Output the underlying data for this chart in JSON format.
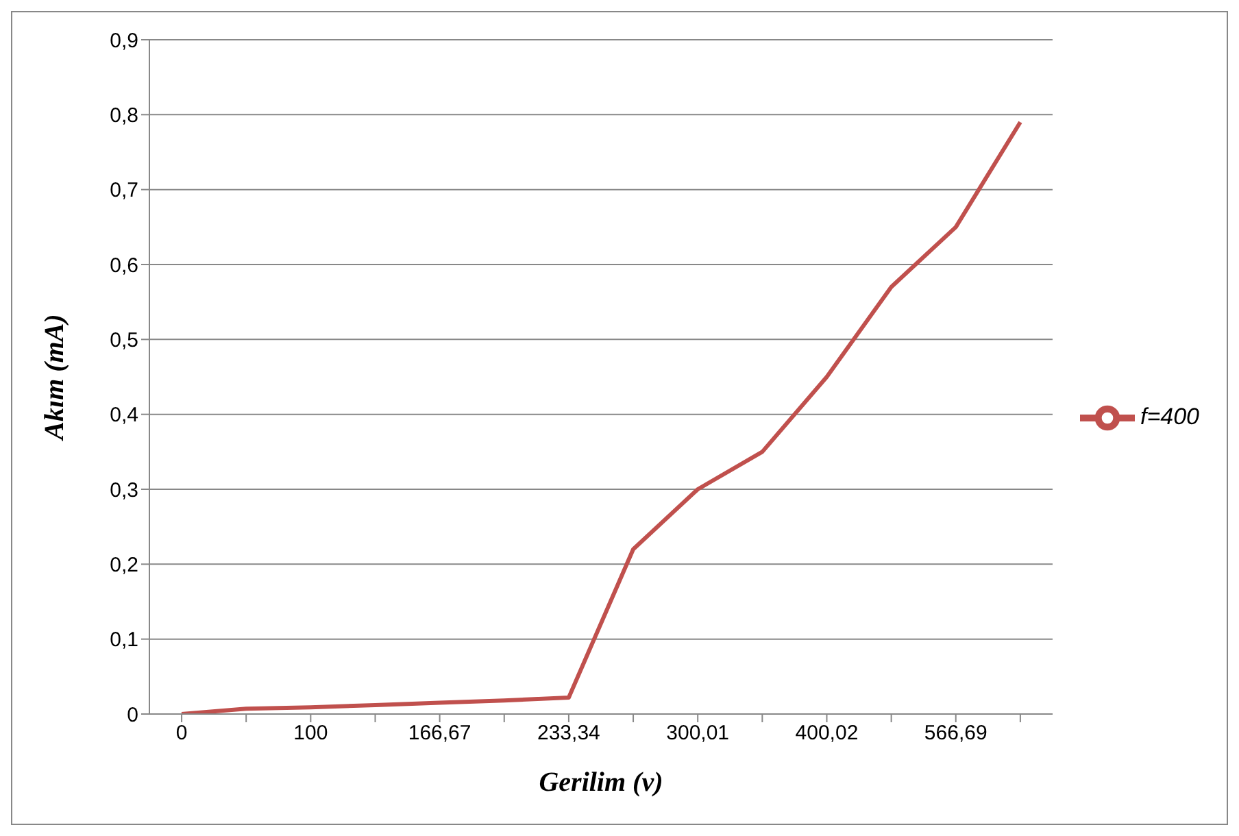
{
  "chart_data": {
    "type": "line",
    "xlabel": "Gerilim (v)",
    "ylabel": "Akım (mA)",
    "categories": [
      "0",
      null,
      "100",
      null,
      "166,67",
      null,
      "233,34",
      null,
      "300,01",
      null,
      "400,02",
      null,
      "566,69",
      null
    ],
    "series": [
      {
        "name": "f=400",
        "color": "#c0504d",
        "values": [
          0,
          0.007,
          0.009,
          0.012,
          0.015,
          0.018,
          0.022,
          0.22,
          0.3,
          0.35,
          0.45,
          0.57,
          0.65,
          0.79
        ]
      }
    ],
    "ylim": [
      0,
      0.9
    ],
    "yticks": [
      {
        "value": 0,
        "label": "0"
      },
      {
        "value": 0.1,
        "label": "0,1"
      },
      {
        "value": 0.2,
        "label": "0,2"
      },
      {
        "value": 0.3,
        "label": "0,3"
      },
      {
        "value": 0.4,
        "label": "0,4"
      },
      {
        "value": 0.5,
        "label": "0,5"
      },
      {
        "value": 0.6,
        "label": "0,6"
      },
      {
        "value": 0.7,
        "label": "0,7"
      },
      {
        "value": 0.8,
        "label": "0,8"
      },
      {
        "value": 0.9,
        "label": "0,9"
      }
    ],
    "grid": "y",
    "legend": "right",
    "marker": "none",
    "line_style": "solid"
  }
}
